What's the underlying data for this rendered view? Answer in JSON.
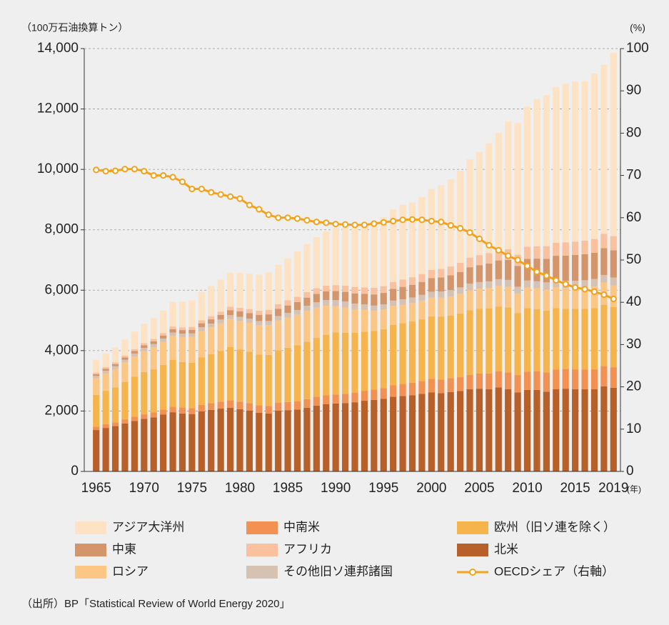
{
  "chart_data": {
    "type": "bar",
    "stacked": true,
    "ylabel": "（100万石油換算トン）",
    "y2label": "(%)",
    "xlabel": "(年)",
    "source": "（出所）BP「Statistical Review of World Energy 2020」",
    "categories": [
      "1965",
      null,
      null,
      null,
      null,
      "1970",
      null,
      null,
      null,
      null,
      "1975",
      null,
      null,
      null,
      null,
      "1980",
      null,
      null,
      null,
      null,
      "1985",
      null,
      null,
      null,
      null,
      "1990",
      null,
      null,
      null,
      null,
      "1995",
      null,
      null,
      null,
      null,
      "2000",
      null,
      null,
      null,
      null,
      "2005",
      null,
      null,
      null,
      null,
      "2010",
      null,
      null,
      null,
      null,
      "2015",
      null,
      null,
      null,
      "2019"
    ],
    "ylim": [
      0,
      14000
    ],
    "yticks": [
      0,
      {
        "value": 2000,
        "label": "2,000"
      },
      {
        "value": 4000,
        "label": "4,000"
      },
      {
        "value": 6000,
        "label": "6,000"
      },
      {
        "value": 8000,
        "label": "8,000"
      },
      {
        "value": 10000,
        "label": "10,000"
      },
      {
        "value": 12000,
        "label": "12,000"
      },
      {
        "value": 14000,
        "label": "14,000"
      }
    ],
    "y2lim": [
      0,
      100
    ],
    "y2ticks": [
      0,
      10,
      20,
      30,
      40,
      50,
      60,
      70,
      80,
      90,
      100
    ],
    "grid": true,
    "series": [
      {
        "name": "北米",
        "color": "#b8602a",
        "values": [
          1370,
          1440,
          1500,
          1590,
          1670,
          1740,
          1790,
          1880,
          1960,
          1920,
          1900,
          1990,
          2040,
          2080,
          2110,
          2060,
          2010,
          1940,
          1920,
          2010,
          2030,
          2050,
          2110,
          2180,
          2230,
          2250,
          2260,
          2290,
          2340,
          2370,
          2400,
          2470,
          2500,
          2520,
          2570,
          2620,
          2590,
          2630,
          2660,
          2720,
          2740,
          2720,
          2780,
          2720,
          2620,
          2700,
          2700,
          2640,
          2720,
          2740,
          2720,
          2720,
          2720,
          2820,
          2770
        ]
      },
      {
        "name": "中南米",
        "color": "#f39152",
        "values": [
          110,
          120,
          125,
          135,
          145,
          150,
          160,
          170,
          185,
          195,
          200,
          210,
          220,
          230,
          245,
          250,
          250,
          250,
          250,
          260,
          265,
          275,
          285,
          290,
          295,
          300,
          310,
          320,
          330,
          345,
          360,
          380,
          400,
          415,
          425,
          450,
          450,
          455,
          460,
          480,
          500,
          520,
          540,
          560,
          570,
          600,
          620,
          640,
          650,
          660,
          660,
          650,
          660,
          670,
          680
        ]
      },
      {
        "name": "欧州（旧ソ連を除く）",
        "color": "#f6b54c",
        "values": [
          1050,
          1110,
          1160,
          1240,
          1320,
          1400,
          1430,
          1480,
          1550,
          1510,
          1500,
          1580,
          1620,
          1680,
          1760,
          1730,
          1700,
          1680,
          1690,
          1740,
          1800,
          1850,
          1900,
          1950,
          2000,
          2050,
          2020,
          1980,
          1960,
          1940,
          1950,
          2000,
          2010,
          2030,
          2040,
          2060,
          2080,
          2070,
          2110,
          2140,
          2150,
          2160,
          2140,
          2150,
          2050,
          2110,
          2050,
          2040,
          2040,
          1980,
          2000,
          2010,
          2030,
          2030,
          1990
        ]
      },
      {
        "name": "ロシア",
        "color": "#fcc684",
        "values": [
          550,
          580,
          610,
          640,
          670,
          700,
          730,
          760,
          790,
          820,
          850,
          870,
          890,
          910,
          930,
          950,
          960,
          970,
          980,
          990,
          1000,
          1010,
          1020,
          1000,
          960,
          870,
          840,
          780,
          720,
          660,
          650,
          630,
          610,
          610,
          620,
          620,
          630,
          640,
          650,
          660,
          660,
          670,
          680,
          680,
          650,
          680,
          690,
          700,
          690,
          690,
          690,
          700,
          710,
          730,
          720
        ]
      },
      {
        "name": "その他旧ソ連邦諸国",
        "color": "#d6c2b2",
        "values": [
          80,
          85,
          90,
          95,
          100,
          100,
          105,
          110,
          115,
          120,
          120,
          125,
          125,
          130,
          130,
          130,
          135,
          140,
          140,
          145,
          150,
          160,
          170,
          180,
          190,
          200,
          195,
          185,
          180,
          175,
          170,
          175,
          180,
          185,
          190,
          200,
          205,
          210,
          215,
          220,
          220,
          225,
          225,
          230,
          225,
          230,
          235,
          240,
          240,
          245,
          245,
          250,
          250,
          255,
          260
        ]
      },
      {
        "name": "中東",
        "color": "#d4956a",
        "values": [
          60,
          65,
          70,
          75,
          80,
          90,
          95,
          100,
          110,
          115,
          120,
          130,
          140,
          150,
          165,
          180,
          190,
          205,
          220,
          235,
          250,
          260,
          270,
          280,
          290,
          300,
          320,
          340,
          350,
          370,
          380,
          390,
          410,
          420,
          430,
          450,
          470,
          490,
          510,
          540,
          560,
          590,
          620,
          660,
          690,
          720,
          750,
          780,
          800,
          830,
          850,
          860,
          870,
          890,
          900
        ]
      },
      {
        "name": "アフリカ",
        "color": "#f9c19d",
        "values": [
          50,
          52,
          55,
          60,
          65,
          70,
          75,
          80,
          85,
          90,
          95,
          100,
          105,
          110,
          115,
          120,
          130,
          140,
          150,
          160,
          170,
          175,
          180,
          185,
          190,
          200,
          205,
          210,
          215,
          220,
          225,
          230,
          240,
          250,
          260,
          270,
          280,
          290,
          300,
          320,
          330,
          340,
          350,
          360,
          370,
          400,
          410,
          420,
          430,
          440,
          440,
          450,
          460,
          470,
          470
        ]
      },
      {
        "name": "アジア大洋州",
        "color": "#fde3c4",
        "values": [
          430,
          460,
          490,
          530,
          580,
          640,
          690,
          750,
          820,
          850,
          880,
          940,
          1000,
          1060,
          1120,
          1150,
          1170,
          1190,
          1230,
          1300,
          1380,
          1500,
          1590,
          1690,
          1790,
          1900,
          1960,
          2030,
          2120,
          2200,
          2290,
          2400,
          2480,
          2470,
          2550,
          2680,
          2770,
          2880,
          3050,
          3250,
          3420,
          3640,
          3880,
          4230,
          4360,
          4630,
          4870,
          5000,
          5150,
          5250,
          5300,
          5280,
          5470,
          5600,
          6070
        ]
      },
      {
        "name": "OECDシェア（右軸）",
        "color": "#f2a31b",
        "type": "line",
        "axis": "y2",
        "values": [
          71.3,
          71,
          71.1,
          71.5,
          71.5,
          71,
          70,
          70,
          69.6,
          68.5,
          66.8,
          66.8,
          66,
          65.5,
          65,
          64.5,
          63,
          62,
          60.7,
          60,
          60,
          59.8,
          59.4,
          59,
          58.8,
          58.5,
          58.4,
          58.3,
          58.3,
          58.6,
          58.9,
          59.2,
          59.5,
          59.6,
          59.5,
          59.2,
          59,
          58.2,
          57.5,
          56.5,
          55,
          53.5,
          52.3,
          51,
          50,
          48.6,
          47.2,
          46.3,
          45.2,
          44.3,
          43.5,
          43.1,
          42.5,
          41.8,
          40.8
        ]
      }
    ]
  }
}
